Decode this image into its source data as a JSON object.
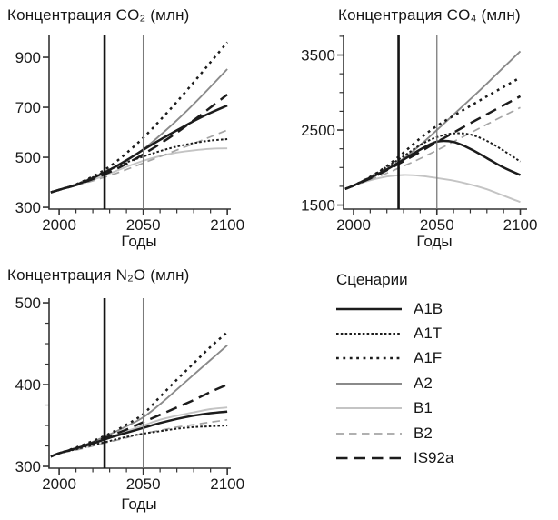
{
  "page": {
    "background": "#ffffff"
  },
  "legend": {
    "title": "Сценарии",
    "items": [
      {
        "label": "A1B",
        "line_style": "solid",
        "color": "#1c1c1c",
        "width": 2.5
      },
      {
        "label": "A1T",
        "line_style": "fine-dotted",
        "color": "#1c1c1c",
        "width": 2.0
      },
      {
        "label": "A1F",
        "line_style": "dotted",
        "color": "#1c1c1c",
        "width": 2.5
      },
      {
        "label": "A2",
        "line_style": "solid",
        "color": "#8a8a8a",
        "width": 1.9
      },
      {
        "label": "B1",
        "line_style": "solid",
        "color": "#c4c4c4",
        "width": 1.9
      },
      {
        "label": "B2",
        "line_style": "dashed",
        "color": "#a5a5a5",
        "width": 1.7
      },
      {
        "label": "IS92a",
        "line_style": "long-dash",
        "color": "#1c1c1c",
        "width": 2.5
      }
    ]
  },
  "chart_data": [
    {
      "type": "line",
      "title": "Концентрация CO₂ (млн)",
      "xlabel": "Годы",
      "x_ticks": [
        2000,
        2050,
        2100
      ],
      "x_minor_step": 10,
      "y_ticks": [
        300,
        500,
        700,
        900
      ],
      "y_minor_step": null,
      "xlim": [
        1994,
        2101
      ],
      "ylim": [
        293,
        991
      ],
      "grid": false,
      "ref_lines": [
        {
          "year": 2027,
          "color": "#141414",
          "width": 2.6
        },
        {
          "year": 2050,
          "color": "#7a7a7a",
          "width": 1.3
        }
      ],
      "x": [
        1995,
        2000,
        2010,
        2020,
        2030,
        2040,
        2050,
        2060,
        2070,
        2080,
        2090,
        2100
      ],
      "series": [
        {
          "name": "A1B",
          "values": [
            360,
            370,
            390,
            417,
            450,
            488,
            530,
            570,
            608,
            645,
            678,
            707
          ]
        },
        {
          "name": "A1T",
          "values": [
            360,
            370,
            392,
            420,
            452,
            480,
            503,
            525,
            543,
            557,
            567,
            573
          ]
        },
        {
          "name": "A1F",
          "values": [
            360,
            370,
            392,
            423,
            463,
            517,
            578,
            648,
            722,
            800,
            880,
            960
          ]
        },
        {
          "name": "A2",
          "values": [
            360,
            370,
            390,
            417,
            450,
            490,
            532,
            588,
            648,
            713,
            782,
            853
          ]
        },
        {
          "name": "B1",
          "values": [
            360,
            370,
            388,
            410,
            435,
            462,
            486,
            505,
            519,
            528,
            534,
            536
          ]
        },
        {
          "name": "B2",
          "values": [
            360,
            370,
            387,
            406,
            427,
            451,
            477,
            503,
            529,
            555,
            582,
            609
          ]
        },
        {
          "name": "IS92a",
          "values": [
            360,
            370,
            389,
            413,
            441,
            474,
            512,
            554,
            599,
            648,
            699,
            751
          ]
        }
      ]
    },
    {
      "type": "line",
      "title": "Концентрация CO₄ (млн)",
      "xlabel": "Годы",
      "x_ticks": [
        2000,
        2050,
        2100
      ],
      "x_minor_step": 10,
      "y_ticks": [
        1500,
        2500,
        3500
      ],
      "y_minor_step": 250,
      "xlim": [
        1994,
        2103
      ],
      "ylim": [
        1446,
        3773
      ],
      "grid": false,
      "ref_lines": [
        {
          "year": 2027,
          "color": "#141414",
          "width": 2.6
        },
        {
          "year": 2050,
          "color": "#7a7a7a",
          "width": 1.3
        }
      ],
      "x": [
        1995,
        2000,
        2010,
        2020,
        2030,
        2040,
        2050,
        2060,
        2070,
        2080,
        2090,
        2100
      ],
      "series": [
        {
          "name": "A1B",
          "values": [
            1715,
            1760,
            1865,
            1975,
            2105,
            2240,
            2345,
            2340,
            2250,
            2125,
            2000,
            1900
          ]
        },
        {
          "name": "A1T",
          "values": [
            1715,
            1760,
            1875,
            2010,
            2150,
            2300,
            2405,
            2455,
            2440,
            2355,
            2225,
            2080
          ]
        },
        {
          "name": "A1F",
          "values": [
            1715,
            1760,
            1875,
            2020,
            2200,
            2390,
            2555,
            2690,
            2820,
            2950,
            3075,
            3200
          ]
        },
        {
          "name": "A2",
          "values": [
            1715,
            1760,
            1855,
            1980,
            2120,
            2300,
            2500,
            2705,
            2910,
            3120,
            3335,
            3550
          ]
        },
        {
          "name": "B1",
          "values": [
            1715,
            1760,
            1830,
            1880,
            1900,
            1890,
            1860,
            1825,
            1775,
            1710,
            1625,
            1540
          ]
        },
        {
          "name": "B2",
          "values": [
            1715,
            1760,
            1840,
            1925,
            2020,
            2120,
            2230,
            2345,
            2460,
            2575,
            2690,
            2800
          ]
        },
        {
          "name": "IS92a",
          "values": [
            1715,
            1760,
            1855,
            1965,
            2085,
            2210,
            2340,
            2465,
            2590,
            2710,
            2830,
            2950
          ]
        }
      ]
    },
    {
      "type": "line",
      "title": "Концентрация N₂O (млн)",
      "xlabel": "Годы",
      "x_ticks": [
        2000,
        2050,
        2100
      ],
      "x_minor_step": 10,
      "y_ticks": [
        300,
        400,
        500
      ],
      "y_minor_step": 25,
      "xlim": [
        1994,
        2101
      ],
      "ylim": [
        297.8,
        505.6
      ],
      "grid": false,
      "ref_lines": [
        {
          "year": 2027,
          "color": "#141414",
          "width": 2.6
        },
        {
          "year": 2050,
          "color": "#7a7a7a",
          "width": 1.3
        }
      ],
      "x": [
        1995,
        2000,
        2010,
        2020,
        2030,
        2040,
        2050,
        2060,
        2070,
        2080,
        2090,
        2100
      ],
      "series": [
        {
          "name": "A1B",
          "values": [
            312,
            316,
            322,
            328,
            335,
            341,
            347,
            353,
            358,
            362,
            365,
            367
          ]
        },
        {
          "name": "A1T",
          "values": [
            312,
            316,
            321,
            326,
            331,
            336,
            340,
            343,
            346,
            348,
            349,
            350
          ]
        },
        {
          "name": "A1F",
          "values": [
            312,
            316,
            323,
            331,
            340,
            351,
            364,
            385,
            406,
            426,
            446,
            464
          ]
        },
        {
          "name": "A2",
          "values": [
            312,
            316,
            322,
            330,
            339,
            349,
            360,
            376,
            394,
            412,
            430,
            448
          ]
        },
        {
          "name": "B1",
          "values": [
            312,
            316,
            322,
            329,
            336,
            343,
            350,
            357,
            362,
            366,
            370,
            372
          ]
        },
        {
          "name": "B2",
          "values": [
            312,
            316,
            320,
            325,
            330,
            335,
            340,
            344,
            348,
            351,
            354,
            357
          ]
        },
        {
          "name": "IS92a",
          "values": [
            312,
            316,
            322,
            329,
            337,
            345,
            354,
            363,
            372,
            381,
            391,
            400
          ]
        }
      ]
    }
  ]
}
